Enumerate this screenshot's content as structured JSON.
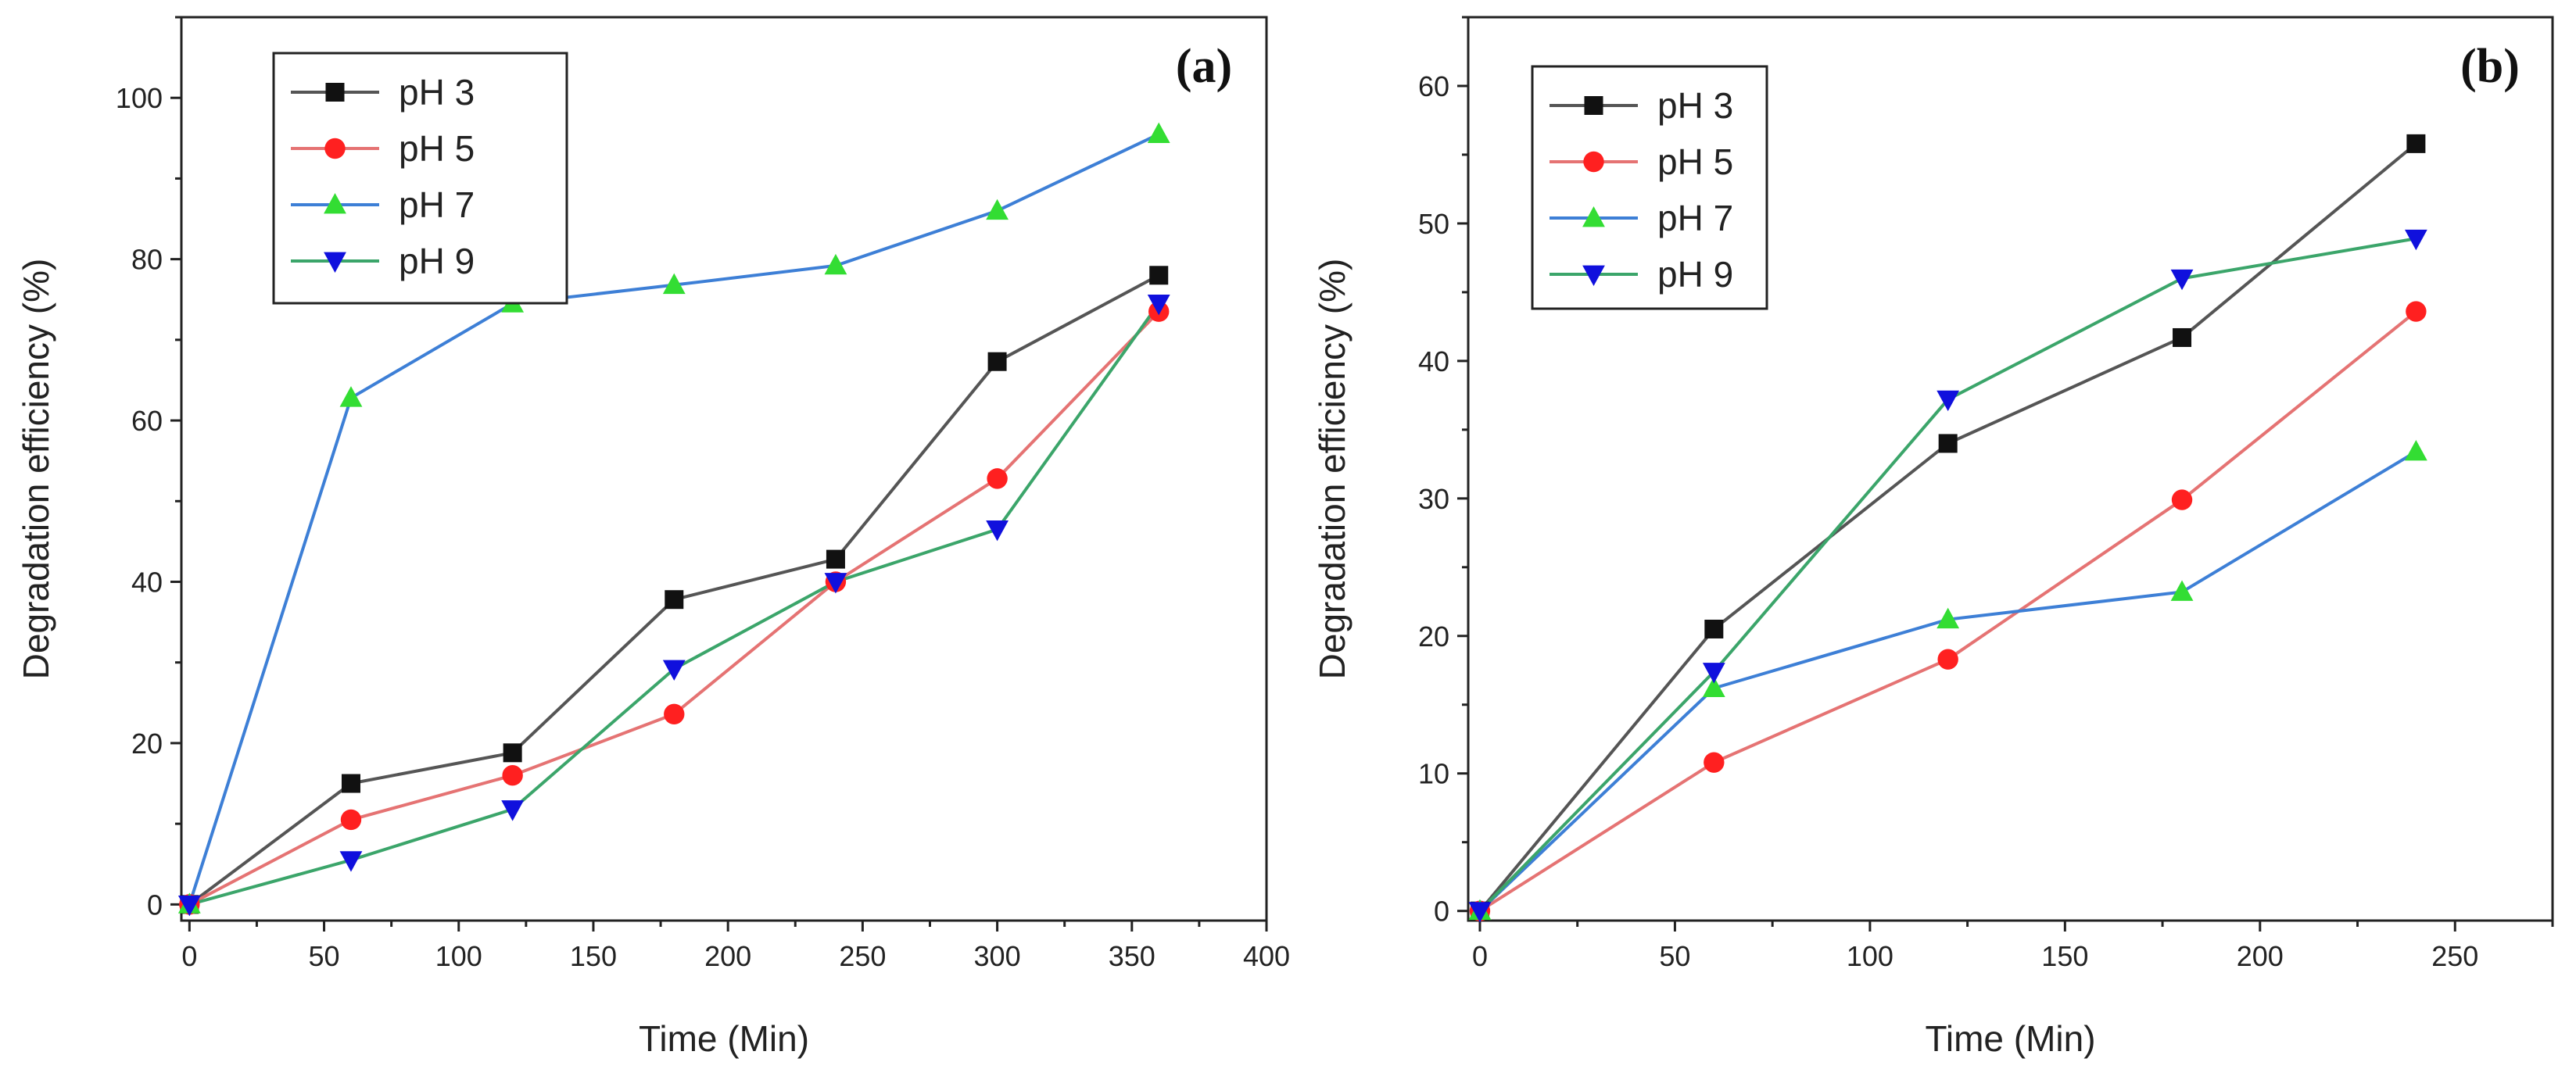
{
  "chart_data": [
    {
      "type": "line",
      "panel_label": "(a)",
      "xlabel": "Time (Min)",
      "ylabel": "Degradation efficiency (%)",
      "xlim": [
        -3,
        400
      ],
      "ylim": [
        -2,
        110
      ],
      "xticks": [
        0,
        50,
        100,
        150,
        200,
        250,
        300,
        350,
        400
      ],
      "yticks": [
        0,
        20,
        40,
        60,
        80,
        100
      ],
      "legend_position": "top-left",
      "x": [
        0,
        60,
        120,
        180,
        240,
        300,
        360
      ],
      "series": [
        {
          "name": "pH 3",
          "line_color": "#555555",
          "marker": "square",
          "marker_color": "#111111",
          "values": [
            0,
            15,
            18.8,
            37.8,
            42.8,
            67.3,
            78
          ]
        },
        {
          "name": "pH 5",
          "line_color": "#e57373",
          "marker": "circle",
          "marker_color": "#ff2020",
          "values": [
            0,
            10.5,
            16,
            23.6,
            40,
            52.8,
            73.5
          ]
        },
        {
          "name": "pH 7",
          "line_color": "#3d7fd6",
          "marker": "triangle-up",
          "marker_color": "#33dd33",
          "values": [
            0,
            62.8,
            74.5,
            76.8,
            79.2,
            86,
            95.5
          ]
        },
        {
          "name": "pH 9",
          "line_color": "#3ba56a",
          "marker": "triangle-down",
          "marker_color": "#1010dd",
          "values": [
            0,
            5.5,
            11.8,
            29.2,
            40,
            46.5,
            74.5
          ]
        }
      ]
    },
    {
      "type": "line",
      "panel_label": "(b)",
      "xlabel": "Time (Min)",
      "ylabel": "Degradation efficiency (%)",
      "xlim": [
        -3,
        275
      ],
      "ylim": [
        -0.7,
        65
      ],
      "xticks": [
        0,
        50,
        100,
        150,
        200,
        250
      ],
      "yticks": [
        0,
        10,
        20,
        30,
        40,
        50,
        60
      ],
      "legend_position": "top-left",
      "x": [
        0,
        60,
        120,
        180,
        240
      ],
      "series": [
        {
          "name": "pH 3",
          "line_color": "#555555",
          "marker": "square",
          "marker_color": "#111111",
          "values": [
            0,
            20.5,
            34,
            41.7,
            55.8
          ]
        },
        {
          "name": "pH 5",
          "line_color": "#e57373",
          "marker": "circle",
          "marker_color": "#ff2020",
          "values": [
            0,
            10.8,
            18.3,
            29.9,
            43.6
          ]
        },
        {
          "name": "pH 7",
          "line_color": "#3d7fd6",
          "marker": "triangle-up",
          "marker_color": "#33dd33",
          "values": [
            0,
            16.2,
            21.2,
            23.2,
            33.4
          ]
        },
        {
          "name": "pH 9",
          "line_color": "#3ba56a",
          "marker": "triangle-down",
          "marker_color": "#1010dd",
          "values": [
            0,
            17.4,
            37.2,
            46,
            48.9
          ]
        }
      ]
    }
  ]
}
